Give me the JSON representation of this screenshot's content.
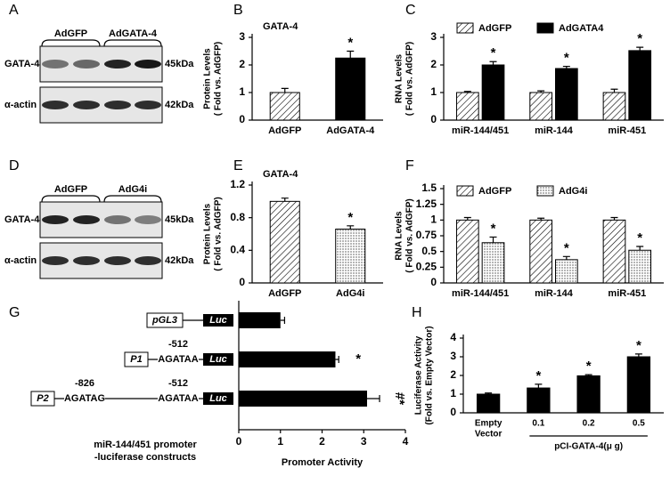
{
  "panels": [
    "A",
    "B",
    "C",
    "D",
    "E",
    "F",
    "G",
    "H"
  ],
  "blots": [
    {
      "groups": [
        "AdGFP",
        "AdGATA-4"
      ],
      "rows": [
        {
          "name": "GATA-4",
          "size": "45kDa"
        },
        {
          "name": "α-actin",
          "size": "42kDa"
        }
      ]
    },
    {
      "groups": [
        "AdGFP",
        "AdG4i"
      ],
      "rows": [
        {
          "name": "GATA-4",
          "size": "45kDa"
        },
        {
          "name": "α-actin",
          "size": "42kDa"
        }
      ]
    }
  ],
  "chart_data": [
    {
      "type": "bar",
      "title": "GATA-4",
      "ylabel": [
        "Protein Levels",
        "( Fold vs. AdGFP)"
      ],
      "categories": [
        "AdGFP",
        "AdGATA-4"
      ],
      "values": [
        1,
        2.25
      ],
      "errors": [
        0.15,
        0.25
      ],
      "fills": [
        "hatch",
        "black"
      ],
      "labels": [
        null,
        "*"
      ],
      "ylim": [
        0,
        3
      ],
      "yticks": [
        0,
        1,
        2,
        3
      ]
    },
    {
      "type": "bar",
      "ylabel": [
        "RNA Levels",
        "( Fold vs. AdGFP)"
      ],
      "categories": [
        "miR-144/451",
        "miR-144",
        "miR-451"
      ],
      "series": [
        {
          "name": "AdGFP",
          "fill": "hatch",
          "values": [
            1,
            1,
            1
          ],
          "errors": [
            0.04,
            0.06,
            0.12
          ]
        },
        {
          "name": "AdGATA4",
          "fill": "black",
          "values": [
            2,
            1.87,
            2.52
          ],
          "errors": [
            0.12,
            0.08,
            0.12
          ],
          "labels": [
            "*",
            "*",
            "*"
          ]
        }
      ],
      "ylim": [
        0,
        3
      ],
      "yticks": [
        0,
        1,
        2,
        3
      ]
    },
    {
      "type": "bar",
      "title": "GATA-4",
      "ylabel": [
        "Protein Levels",
        "( Fold vs. AdGFP)"
      ],
      "categories": [
        "AdGFP",
        "AdG4i"
      ],
      "values": [
        1,
        0.66
      ],
      "errors": [
        0.04,
        0.04
      ],
      "fills": [
        "hatch",
        "dots"
      ],
      "labels": [
        null,
        "*"
      ],
      "ylim": [
        0,
        1.2
      ],
      "yticks": [
        0,
        0.4,
        0.8,
        1.2
      ]
    },
    {
      "type": "bar",
      "ylabel": [
        "RNA Levels",
        "( Fold vs. AdGFP)"
      ],
      "categories": [
        "miR-144/451",
        "miR-144",
        "miR-451"
      ],
      "series": [
        {
          "name": "AdGFP",
          "fill": "hatch",
          "values": [
            1,
            1,
            1
          ],
          "errors": [
            0.04,
            0.03,
            0.04
          ]
        },
        {
          "name": "AdG4i",
          "fill": "dots",
          "values": [
            0.64,
            0.37,
            0.52
          ],
          "errors": [
            0.09,
            0.05,
            0.06
          ],
          "labels": [
            "*",
            "*",
            "*"
          ]
        }
      ],
      "ylim": [
        0,
        1.5
      ],
      "yticks": [
        0,
        0.25,
        0.5,
        0.75,
        1,
        1.25,
        1.5
      ]
    },
    {
      "type": "hbar",
      "constructs": [
        {
          "promoter": "pGL3",
          "reporter": "Luc"
        },
        {
          "promoter": "P1",
          "sites": [
            {
              "pos": "-512",
              "seq": "AGATAA"
            }
          ],
          "reporter": "Luc"
        },
        {
          "promoter": "P2",
          "sites": [
            {
              "pos": "-826",
              "seq": "AGATAG"
            },
            {
              "pos": "-512",
              "seq": "AGATAA"
            }
          ],
          "reporter": "Luc"
        }
      ],
      "values": [
        1,
        2.32,
        3.08
      ],
      "errors": [
        0.1,
        0.08,
        0.3
      ],
      "labels": [
        null,
        "*",
        "#*"
      ],
      "fill": "black",
      "xlim": [
        0,
        4
      ],
      "xticks": [
        0,
        1,
        2,
        3,
        4
      ],
      "xlabel": "Promoter Activity",
      "caption": [
        "miR-144/451 promoter",
        "-luciferase constructs"
      ]
    },
    {
      "type": "bar",
      "ylabel": [
        "Luciferase Activity",
        "(Fold vs. Empty Vector)"
      ],
      "categories": [
        [
          "Empty",
          "Vector"
        ],
        [
          "0.1"
        ],
        [
          "0.2"
        ],
        [
          "0.5"
        ]
      ],
      "values": [
        1,
        1.33,
        1.98,
        3
      ],
      "errors": [
        0.06,
        0.2,
        0.06,
        0.15
      ],
      "fills": [
        "black",
        "black",
        "black",
        "black"
      ],
      "labels": [
        null,
        "*",
        "*",
        "*"
      ],
      "xlabel": "pCI-GATA-4(μ g)",
      "ylim": [
        0,
        4
      ],
      "yticks": [
        0,
        1,
        2,
        3,
        4
      ]
    }
  ]
}
